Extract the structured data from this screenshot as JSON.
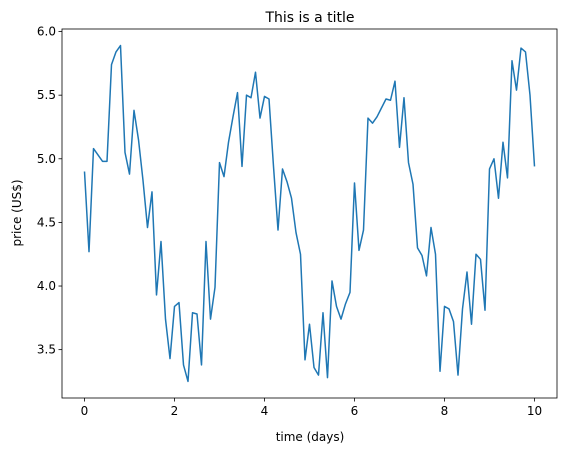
{
  "chart_data": {
    "type": "line",
    "title": "This is a title",
    "x_label": "time (days)",
    "y_label": "price (US$)",
    "x": [
      0,
      0.1,
      0.2,
      0.3,
      0.4,
      0.5,
      0.6,
      0.7,
      0.8,
      0.9,
      1,
      1.1,
      1.2,
      1.3,
      1.4,
      1.5,
      1.6,
      1.7,
      1.8,
      1.9,
      2,
      2.1,
      2.2,
      2.3,
      2.4,
      2.5,
      2.6,
      2.7,
      2.8,
      2.9,
      3,
      3.1,
      3.2,
      3.3,
      3.4,
      3.5,
      3.6,
      3.7,
      3.8,
      3.9,
      4,
      4.1,
      4.2,
      4.3,
      4.4,
      4.5,
      4.6,
      4.7,
      4.8,
      4.9,
      5,
      5.1,
      5.2,
      5.3,
      5.4,
      5.5,
      5.6,
      5.7,
      5.8,
      5.9,
      6,
      6.1,
      6.2,
      6.3,
      6.4,
      6.5,
      6.6,
      6.7,
      6.8,
      6.9,
      7,
      7.1,
      7.2,
      7.3,
      7.4,
      7.5,
      7.6,
      7.7,
      7.8,
      7.9,
      8,
      8.1,
      8.2,
      8.3,
      8.4,
      8.5,
      8.6,
      8.7,
      8.8,
      8.9,
      9,
      9.1,
      9.2,
      9.3,
      9.4,
      9.5,
      9.6,
      9.7,
      9.8,
      9.9,
      10
    ],
    "series": [
      {
        "color": "#1f77b4",
        "values": [
          4.9,
          4.27,
          5.08,
          5.03,
          4.98,
          4.98,
          5.74,
          5.84,
          5.89,
          5.05,
          4.88,
          5.38,
          5.15,
          4.83,
          4.46,
          4.74,
          3.93,
          4.35,
          3.74,
          3.43,
          3.84,
          3.87,
          3.38,
          3.25,
          3.79,
          3.78,
          3.38,
          4.35,
          3.74,
          3.99,
          4.97,
          4.86,
          5.13,
          5.33,
          5.52,
          4.94,
          5.5,
          5.48,
          5.68,
          5.32,
          5.49,
          5.47,
          4.94,
          4.44,
          4.92,
          4.82,
          4.69,
          4.42,
          4.25,
          3.42,
          3.7,
          3.36,
          3.3,
          3.79,
          3.28,
          4.04,
          3.84,
          3.74,
          3.86,
          3.95,
          4.81,
          4.28,
          4.44,
          5.32,
          5.28,
          5.33,
          5.4,
          5.47,
          5.46,
          5.61,
          5.09,
          5.48,
          4.97,
          4.8,
          4.3,
          4.24,
          4.08,
          4.46,
          4.25,
          3.33,
          3.84,
          3.82,
          3.72,
          3.3,
          3.82,
          4.11,
          3.7,
          4.25,
          4.21,
          3.81,
          4.92,
          5.0,
          4.69,
          5.13,
          4.85,
          5.77,
          5.54,
          5.87,
          5.84,
          5.5,
          4.94
        ]
      }
    ],
    "xlim": [
      -0.5,
      10.5
    ],
    "ylim": [
      3.12,
      6.02
    ],
    "xticks": [
      0,
      2,
      4,
      6,
      8,
      10
    ],
    "yticks": [
      3.5,
      {
        "value": 4,
        "label": "4.0"
      },
      4.5,
      {
        "value": 5,
        "label": "5.0"
      },
      5.5,
      {
        "value": 6,
        "label": "6.0"
      }
    ],
    "grid": false
  }
}
